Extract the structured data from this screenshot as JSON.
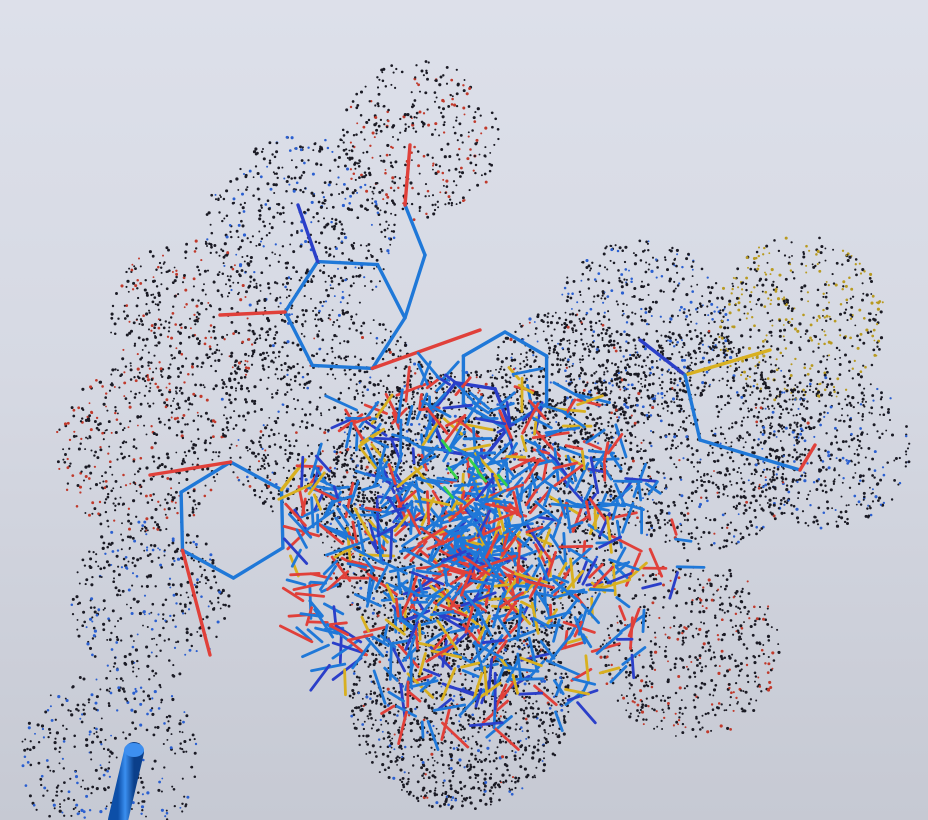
{
  "viewer": {
    "colors": {
      "background_top": "#dde0ea",
      "background_bottom": "#c6c9d3",
      "carbon": "#1f78d8",
      "carbon_dark": "#2b3fc9",
      "oxygen": "#e0403a",
      "sulfur": "#d8b020",
      "halogen": "#35d14a",
      "dot_dark": "#1a1a24",
      "dot_blue": "#2a5fd0",
      "dot_red": "#c0392b",
      "dot_yellow": "#b89a20",
      "stick": "#1f6fd0"
    }
  }
}
